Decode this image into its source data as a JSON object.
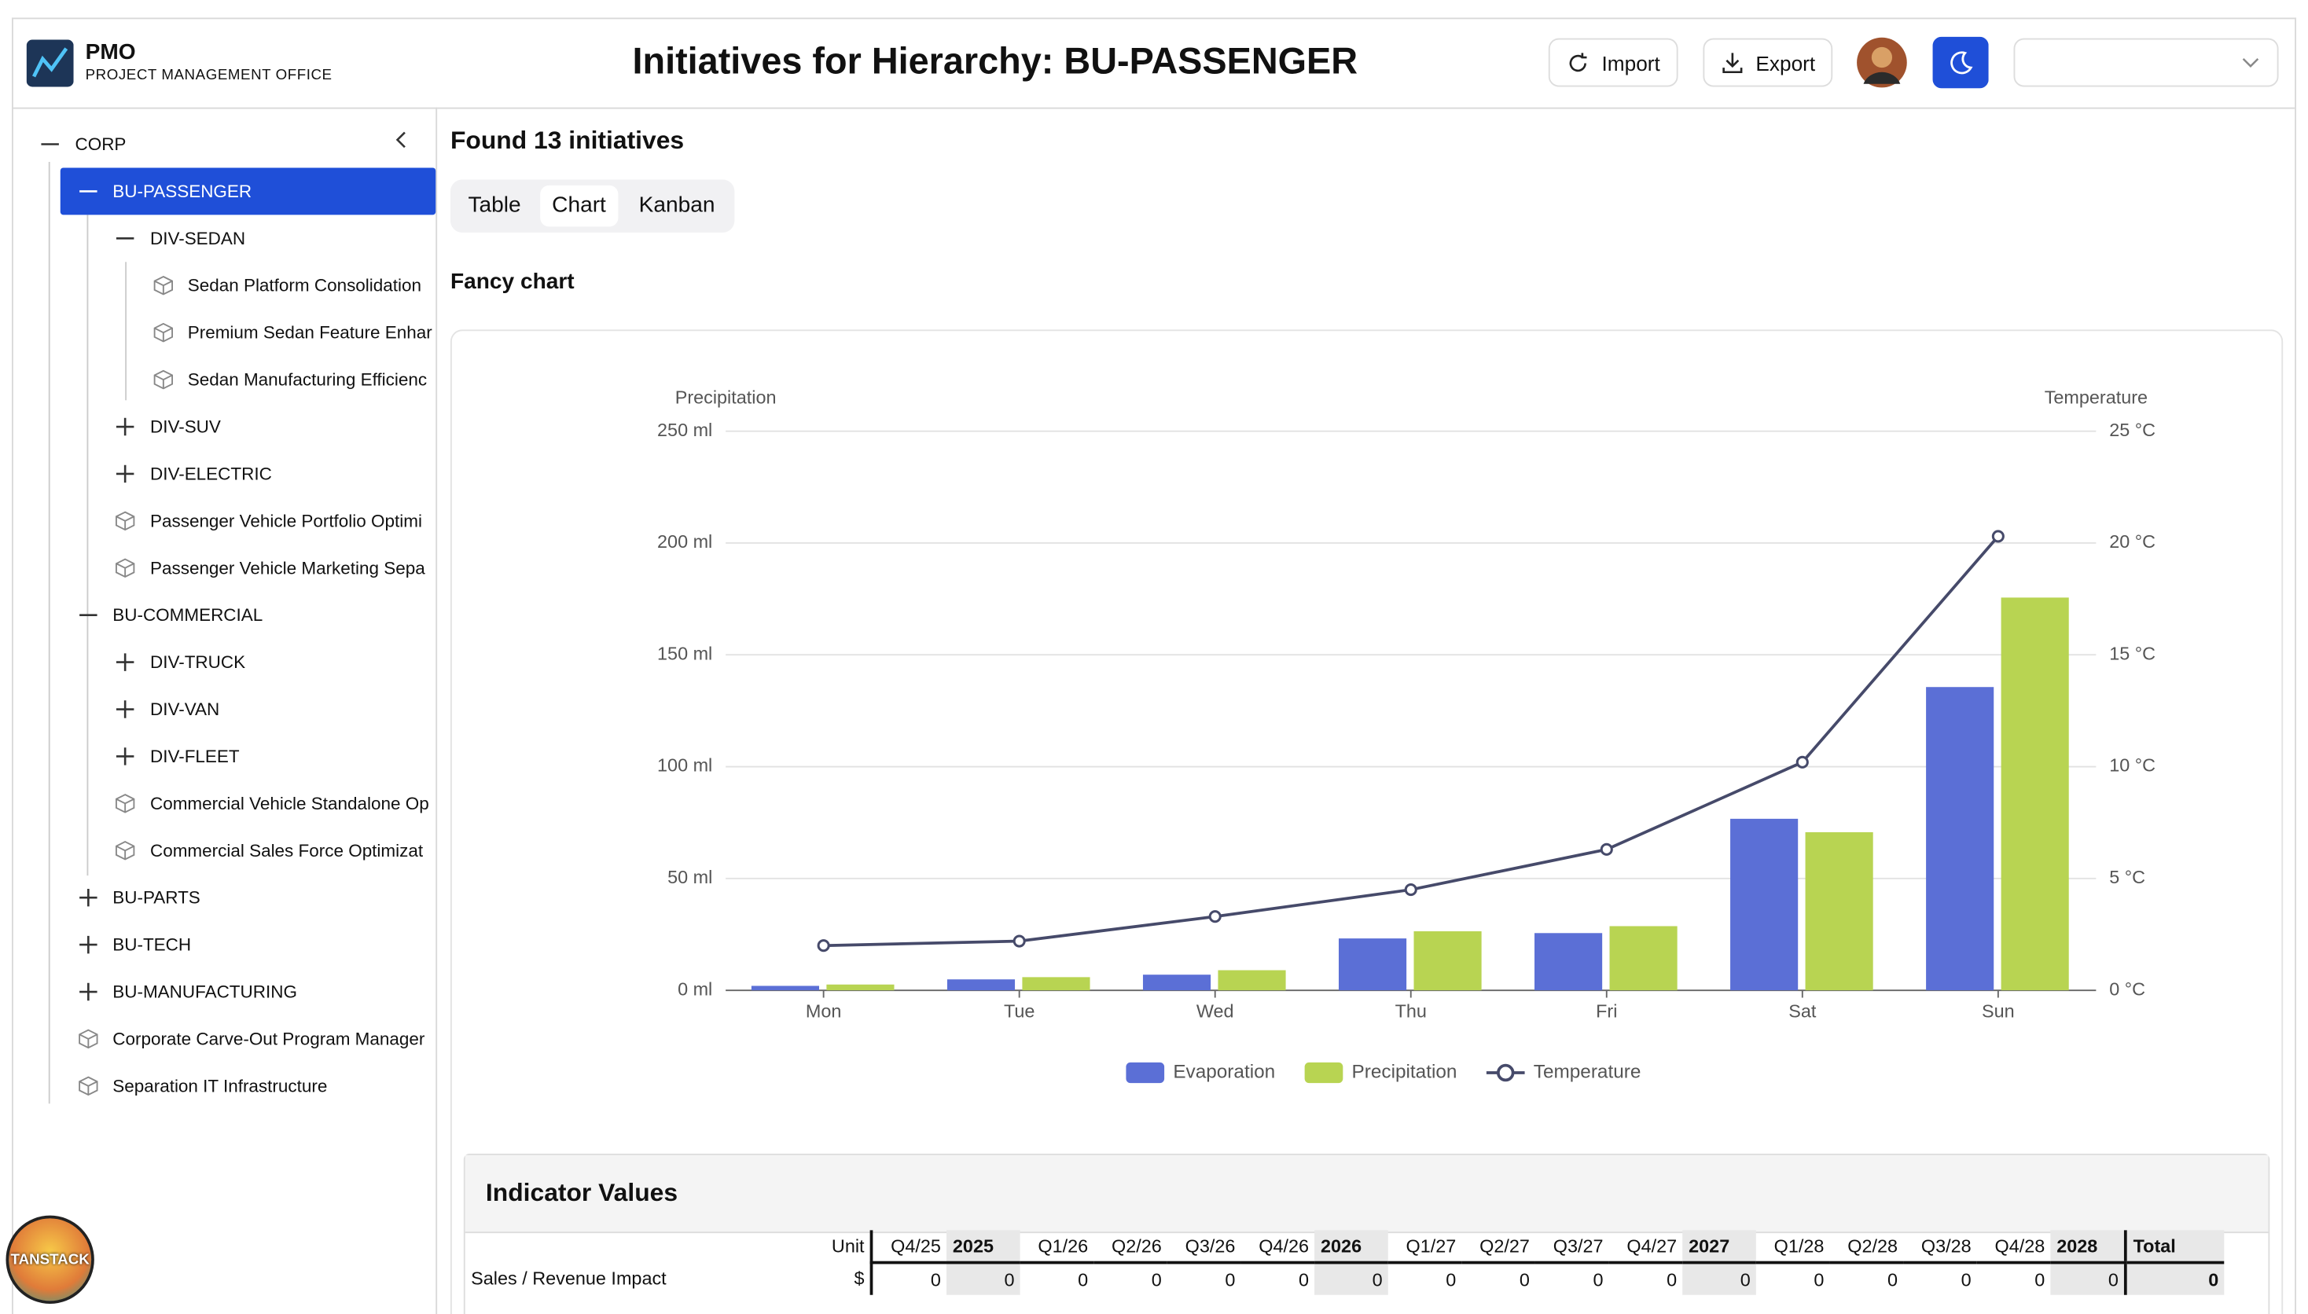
{
  "header": {
    "app_name": "PMO",
    "app_subtitle": "PROJECT MANAGEMENT OFFICE",
    "title": "Initiatives for Hierarchy: BU-PASSENGER",
    "buttons": [
      "Import",
      "Export"
    ]
  },
  "sidebar": {
    "nodes": [
      "CORP",
      "BU-PASSENGER",
      "DIV-SEDAN",
      "Sedan Platform Consolidation",
      "Premium Sedan Feature Enhar",
      "Sedan Manufacturing Efficienc",
      "DIV-SUV",
      "DIV-ELECTRIC",
      "Passenger Vehicle Portfolio Optimi",
      "Passenger Vehicle Marketing Sepa",
      "BU-COMMERCIAL",
      "DIV-TRUCK",
      "DIV-VAN",
      "DIV-FLEET",
      "Commercial Vehicle Standalone Op",
      "Commercial Sales Force Optimizat",
      "BU-PARTS",
      "BU-TECH",
      "BU-MANUFACTURING",
      "Corporate Carve-Out Program Manager",
      "Separation IT Infrastructure"
    ],
    "selected": 1
  },
  "main": {
    "found": "Found 13 initiatives",
    "tabs": [
      "Table",
      "Chart",
      "Kanban"
    ],
    "active_tab": 1,
    "chart_title": "Fancy chart"
  },
  "chart_data": {
    "type": "bar",
    "categories": [
      "Mon",
      "Tue",
      "Wed",
      "Thu",
      "Fri",
      "Sat",
      "Sun"
    ],
    "series": [
      {
        "name": "Evaporation",
        "type": "bar",
        "color": "#5b6fd6",
        "values": [
          2.0,
          4.9,
          7.0,
          23.2,
          25.6,
          76.7,
          135.6
        ]
      },
      {
        "name": "Precipitation",
        "type": "bar",
        "color": "#b8d452",
        "values": [
          2.6,
          5.9,
          9.0,
          26.4,
          28.7,
          70.7,
          175.6
        ]
      },
      {
        "name": "Temperature",
        "type": "line",
        "color": "#464a6a",
        "axis": "y2",
        "values": [
          2.0,
          2.2,
          3.3,
          4.5,
          6.3,
          10.2,
          20.3
        ]
      }
    ],
    "ylabel": "Precipitation",
    "y2label": "Temperature",
    "ylim": [
      0,
      250
    ],
    "yticks": [
      {
        "value": 0,
        "label": "0 ml"
      },
      {
        "value": 50,
        "label": "50 ml"
      },
      {
        "value": 100,
        "label": "100 ml"
      },
      {
        "value": 150,
        "label": "150 ml"
      },
      {
        "value": 200,
        "label": "200 ml"
      },
      {
        "value": 250,
        "label": "250 ml"
      }
    ],
    "y2lim": [
      0,
      25
    ],
    "y2ticks": [
      {
        "value": 0,
        "label": "0 °C"
      },
      {
        "value": 5,
        "label": "5 °C"
      },
      {
        "value": 10,
        "label": "10 °C"
      },
      {
        "value": 15,
        "label": "15 °C"
      },
      {
        "value": 20,
        "label": "20 °C"
      },
      {
        "value": 25,
        "label": "25 °C"
      }
    ],
    "grid": true,
    "legend": "bottom"
  },
  "indicators": {
    "title": "Indicator Values",
    "columns": [
      "Unit",
      "Q4/25",
      "2025",
      "Q1/26",
      "Q2/26",
      "Q3/26",
      "Q4/26",
      "2026",
      "Q1/27",
      "Q2/27",
      "Q3/27",
      "Q4/27",
      "2027",
      "Q1/28",
      "Q2/28",
      "Q3/28",
      "Q4/28",
      "2028",
      "Total"
    ],
    "rows": [
      [
        "Sales / Revenue Impact",
        "$",
        0,
        0,
        0,
        0,
        0,
        0,
        0,
        0,
        0,
        0,
        0,
        0,
        0,
        0,
        0,
        0,
        0,
        0
      ]
    ]
  },
  "badge": "TANSTACK"
}
